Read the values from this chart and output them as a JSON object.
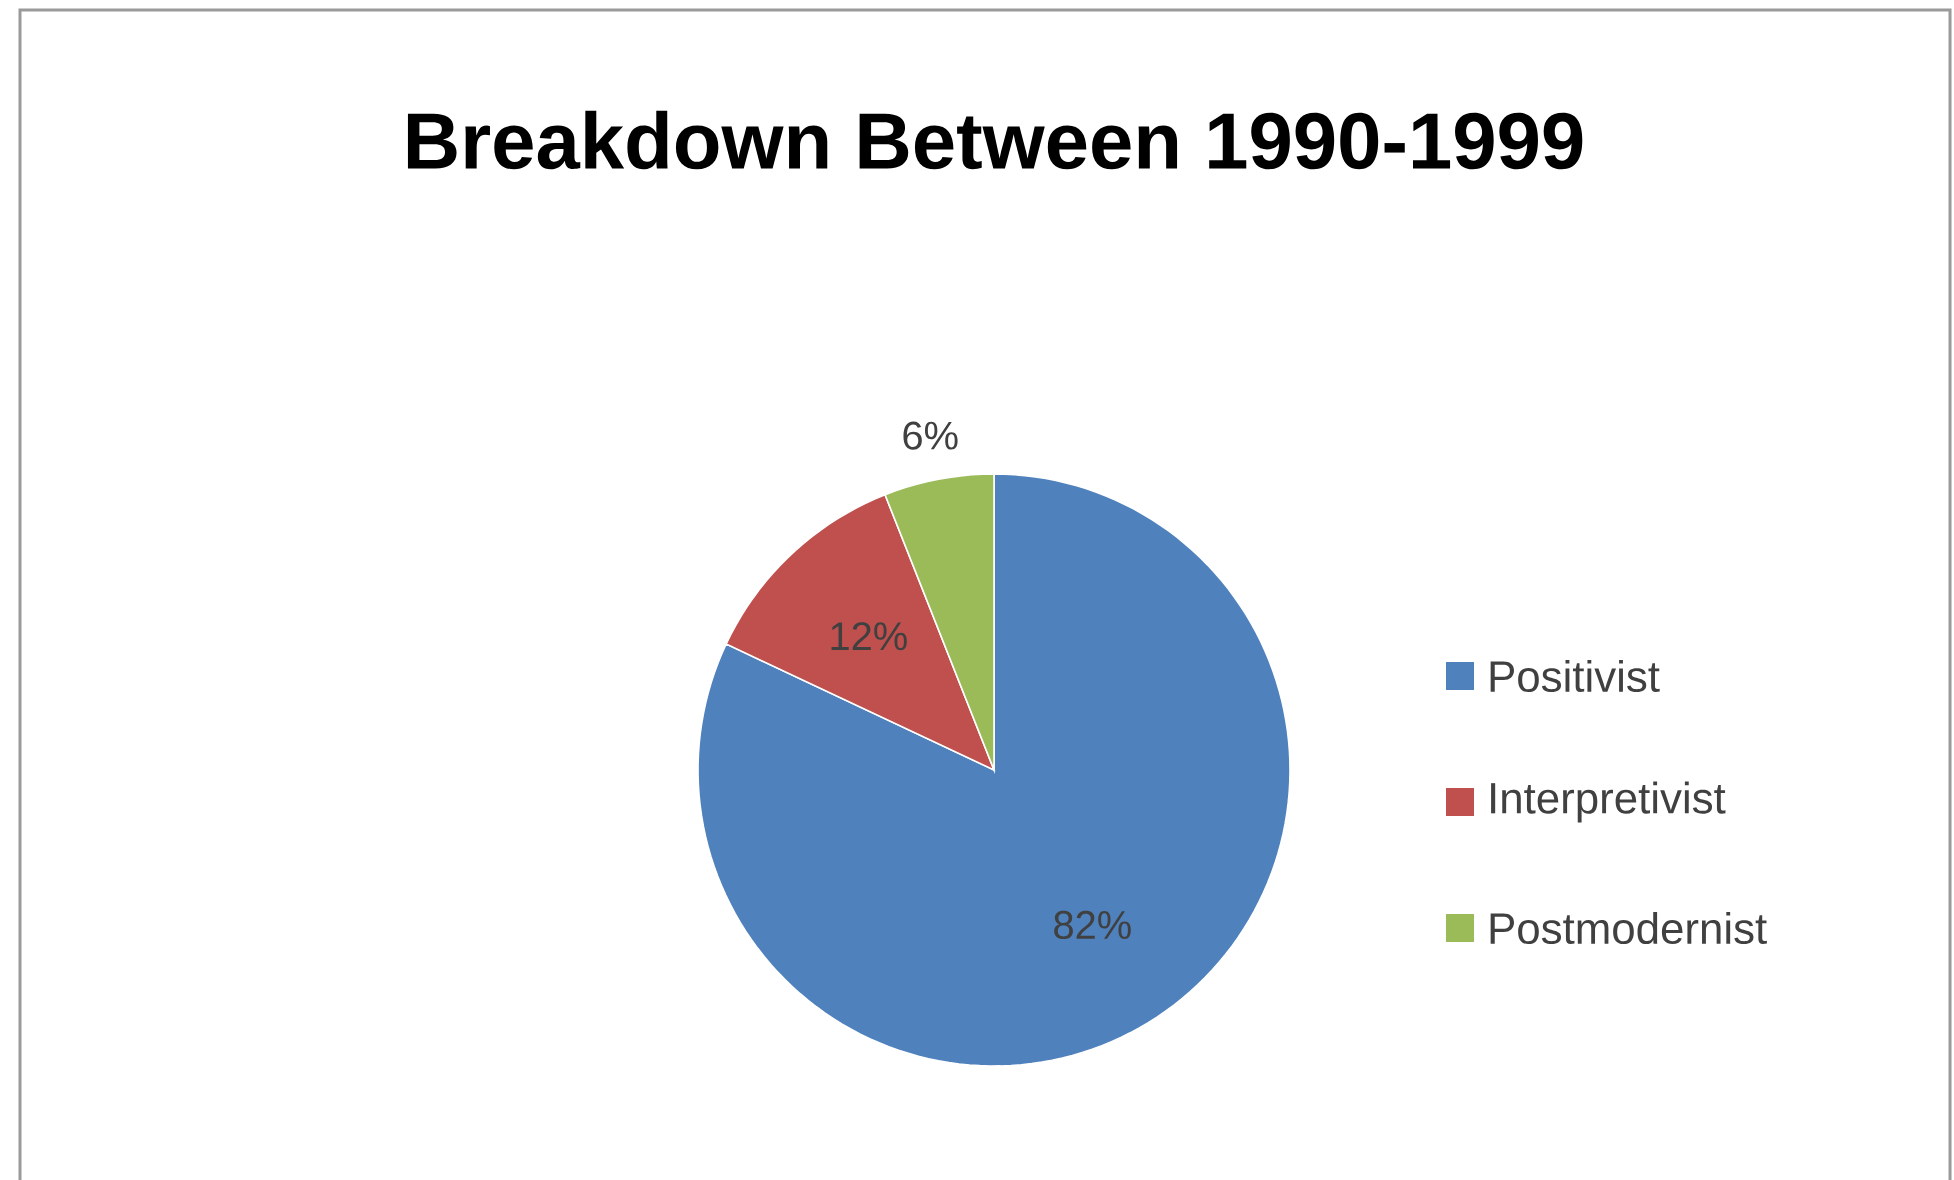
{
  "chart_data": {
    "type": "pie",
    "title": "Breakdown Between 1990-1999",
    "categories": [
      "Positivist",
      "Interpretivist",
      "Postmodernist"
    ],
    "values": [
      82,
      12,
      6
    ],
    "colors": [
      "#4f81bd",
      "#c0504d",
      "#9bbb59"
    ],
    "value_labels": [
      "82%",
      "12%",
      "6%"
    ],
    "legend": "right"
  }
}
